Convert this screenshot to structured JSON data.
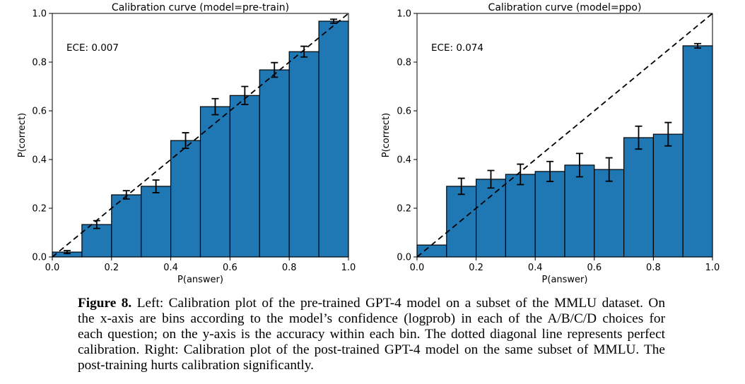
{
  "figure": {
    "caption_label": "Figure 8.",
    "caption_lines": [
      "Left: Calibration plot of the pre-trained GPT-4 model on a subset of the MMLU dataset. On",
      "the x-axis are bins according to the model’s confidence (logprob) in each of the A/B/C/D choices for",
      "each question; on the y-axis is the accuracy within each bin. The dotted diagonal line represents perfect",
      "calibration. Right: Calibration plot of the post-trained GPT-4 model on the same subset of MMLU. The",
      "post-training hurts calibration significantly."
    ]
  },
  "colors": {
    "bar": "#1f77b4",
    "edge": "#000000"
  },
  "chart_data": [
    {
      "type": "bar",
      "title": "Calibration curve (model=pre-train)",
      "annotation": "ECE: 0.007",
      "xlabel": "P(answer)",
      "ylabel": "P(correct)",
      "xlim": [
        0,
        1
      ],
      "ylim": [
        0,
        1
      ],
      "xticks": [
        0.0,
        0.2,
        0.4,
        0.6,
        0.8,
        1.0
      ],
      "yticks": [
        0.0,
        0.2,
        0.4,
        0.6,
        0.8,
        1.0
      ],
      "bin_edges": [
        0.0,
        0.1,
        0.2,
        0.3,
        0.4,
        0.5,
        0.6,
        0.7,
        0.8,
        0.9,
        1.0
      ],
      "values": [
        0.02,
        0.133,
        0.255,
        0.29,
        0.478,
        0.617,
        0.663,
        0.768,
        0.843,
        0.968
      ],
      "errors": [
        0.006,
        0.016,
        0.017,
        0.026,
        0.032,
        0.033,
        0.037,
        0.03,
        0.022,
        0.008
      ],
      "diagonal": true,
      "grid": false,
      "legend": null
    },
    {
      "type": "bar",
      "title": "Calibration curve (model=ppo)",
      "annotation": "ECE: 0.074",
      "xlabel": "P(answer)",
      "ylabel": "P(correct)",
      "xlim": [
        0,
        1
      ],
      "ylim": [
        0,
        1
      ],
      "xticks": [
        0.0,
        0.2,
        0.4,
        0.6,
        0.8,
        1.0
      ],
      "yticks": [
        0.0,
        0.2,
        0.4,
        0.6,
        0.8,
        1.0
      ],
      "bin_edges": [
        0.0,
        0.1,
        0.2,
        0.3,
        0.4,
        0.5,
        0.6,
        0.7,
        0.8,
        0.9,
        1.0
      ],
      "values": [
        0.049,
        0.29,
        0.319,
        0.339,
        0.351,
        0.377,
        0.359,
        0.49,
        0.504,
        0.867
      ],
      "errors": [
        0,
        0.033,
        0.036,
        0.042,
        0.041,
        0.048,
        0.048,
        0.047,
        0.048,
        0.009
      ],
      "diagonal": true,
      "grid": false,
      "legend": null
    }
  ]
}
